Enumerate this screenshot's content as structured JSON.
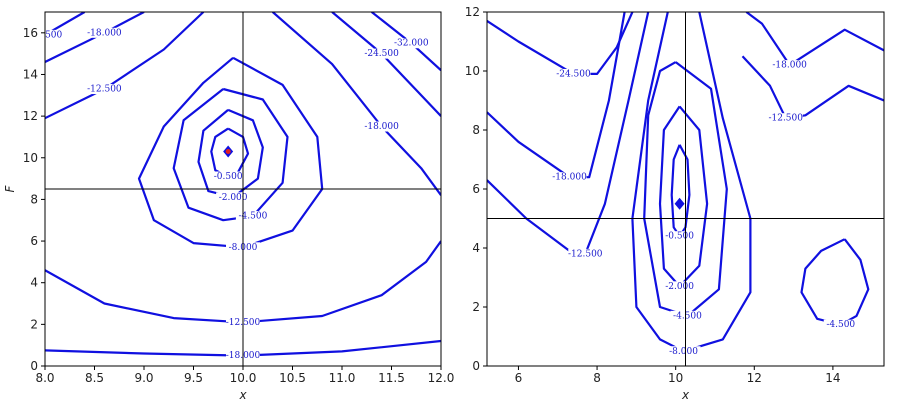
{
  "chart_data": [
    {
      "type": "contour",
      "xlabel": "x",
      "ylabel": "F",
      "xlim": [
        8,
        12
      ],
      "ylim": [
        0,
        17
      ],
      "xticks": [
        {
          "value": 8,
          "label": "8.0"
        },
        {
          "value": 8.5,
          "label": "8.5"
        },
        {
          "value": 9,
          "label": "9.0"
        },
        {
          "value": 9.5,
          "label": "9.5"
        },
        {
          "value": 10,
          "label": "10.0"
        },
        {
          "value": 10.5,
          "label": "10.5"
        },
        {
          "value": 11,
          "label": "11.0"
        },
        {
          "value": 11.5,
          "label": "11.5"
        },
        {
          "value": 12,
          "label": "12.0"
        }
      ],
      "yticks": [
        0,
        2,
        4,
        6,
        8,
        10,
        12,
        14,
        16
      ],
      "color": "#1010e0",
      "crosshair": {
        "x": 10,
        "y": 8.5
      },
      "optimum": {
        "x": 9.85,
        "y": 10.3
      },
      "contours": [
        {
          "level": -0.5,
          "label": "-0.500",
          "x": [
            9.85,
            10.0,
            10.05,
            9.95,
            9.85,
            9.72,
            9.68,
            9.72,
            9.85
          ],
          "y": [
            11.4,
            11.0,
            10.2,
            9.3,
            9.1,
            9.4,
            10.3,
            11.0,
            11.4
          ]
        },
        {
          "level": -2,
          "label": "-2.000",
          "x": [
            9.85,
            10.1,
            10.2,
            10.15,
            9.9,
            9.65,
            9.55,
            9.6,
            9.85
          ],
          "y": [
            12.3,
            11.8,
            10.5,
            9.0,
            8.1,
            8.4,
            9.8,
            11.3,
            12.3
          ]
        },
        {
          "level": -4.5,
          "label": "-4.500",
          "x": [
            9.8,
            10.2,
            10.45,
            10.4,
            10.1,
            9.8,
            9.45,
            9.3,
            9.4,
            9.8
          ],
          "y": [
            13.3,
            12.8,
            11.0,
            8.8,
            7.2,
            7.0,
            7.6,
            9.5,
            11.8,
            13.3
          ]
        },
        {
          "level": -8,
          "label": "-8.000",
          "x": [
            9.9,
            10.4,
            10.75,
            10.8,
            10.5,
            10.0,
            9.5,
            9.1,
            8.95,
            9.2,
            9.6,
            9.9
          ],
          "y": [
            14.8,
            13.5,
            11.0,
            8.5,
            6.5,
            5.7,
            5.9,
            7.0,
            9.0,
            11.5,
            13.6,
            14.8
          ]
        },
        {
          "level": -12.5,
          "label": "-12.500",
          "x": [
            8.0,
            8.6,
            9.3,
            10.0,
            10.8,
            11.4,
            11.85,
            12.0
          ],
          "y": [
            4.6,
            3.0,
            2.3,
            2.1,
            2.4,
            3.4,
            5.0,
            6.0
          ]
        },
        {
          "level": -12.5,
          "label": "-12.500",
          "x": [
            8.0,
            8.6,
            9.2,
            9.6
          ],
          "y": [
            11.9,
            13.3,
            15.2,
            17.0
          ]
        },
        {
          "level": -18,
          "label": "-18.000",
          "x": [
            8.0,
            9.0,
            10.0,
            11.0,
            12.0
          ],
          "y": [
            0.75,
            0.6,
            0.5,
            0.7,
            1.2
          ]
        },
        {
          "level": -18,
          "label": "-18.000",
          "x": [
            8.0,
            8.6,
            9.0
          ],
          "y": [
            14.6,
            16.0,
            17.0
          ]
        },
        {
          "level": -18,
          "label": "-18.000",
          "x": [
            10.3,
            10.9,
            11.4,
            11.8,
            12.0
          ],
          "y": [
            17.0,
            14.5,
            11.5,
            9.5,
            8.2
          ]
        },
        {
          "level": -24.5,
          "label": "-24.500",
          "x": [
            8.0,
            8.4
          ],
          "y": [
            15.9,
            17.0
          ]
        },
        {
          "level": -24.5,
          "label": "-24.500",
          "x": [
            10.9,
            11.4,
            11.8,
            12.0
          ],
          "y": [
            17.0,
            15.0,
            13.0,
            12.0
          ]
        },
        {
          "level": -32,
          "label": "-32.000",
          "x": [
            11.3,
            11.7,
            12.0
          ],
          "y": [
            17.0,
            15.5,
            14.2
          ]
        }
      ]
    },
    {
      "type": "contour",
      "xlabel": "x",
      "xlim": [
        5.2,
        15.3
      ],
      "ylim": [
        0,
        12
      ],
      "xticks": [
        6,
        8,
        10,
        12,
        14
      ],
      "yticks": [
        0,
        2,
        4,
        6,
        8,
        10,
        12
      ],
      "color": "#1010e0",
      "crosshair": {
        "x": 10.25,
        "y": 5
      },
      "optimum": {
        "x": 10.1,
        "y": 5.5
      },
      "contours": [
        {
          "level": -0.5,
          "label": "-0.500",
          "x": [
            10.1,
            10.3,
            10.35,
            10.25,
            10.1,
            9.95,
            9.9,
            9.95,
            10.1
          ],
          "y": [
            7.5,
            7.0,
            5.8,
            4.7,
            4.4,
            4.7,
            5.8,
            7.0,
            7.5
          ]
        },
        {
          "level": -2,
          "label": "-2.000",
          "x": [
            10.1,
            10.6,
            10.8,
            10.6,
            10.1,
            9.7,
            9.6,
            9.7,
            10.1
          ],
          "y": [
            8.8,
            8.0,
            5.5,
            3.4,
            2.7,
            3.3,
            5.5,
            8.0,
            8.8
          ]
        },
        {
          "level": -4.5,
          "label": "-4.500",
          "x": [
            10.0,
            10.9,
            11.3,
            11.1,
            10.3,
            9.6,
            9.2,
            9.3,
            9.6,
            10.0
          ],
          "y": [
            10.3,
            9.4,
            6.0,
            2.6,
            1.7,
            2.0,
            5.0,
            8.5,
            10.0,
            10.3
          ]
        },
        {
          "level": -4.5,
          "label": "-4.500",
          "x": [
            14.3,
            14.7,
            14.9,
            14.6,
            14.2,
            13.6,
            13.2,
            13.3,
            13.7,
            14.3
          ],
          "y": [
            4.3,
            3.6,
            2.6,
            1.7,
            1.4,
            1.6,
            2.5,
            3.3,
            3.9,
            4.3
          ]
        },
        {
          "level": -8,
          "label": "-8.000",
          "x": [
            9.8,
            9.3,
            8.9,
            9.0,
            9.6,
            10.2,
            11.2,
            11.9,
            11.9,
            11.2,
            10.6
          ],
          "y": [
            12.0,
            9.0,
            5.0,
            2.0,
            0.9,
            0.5,
            0.9,
            2.5,
            5.0,
            8.4,
            12.0
          ]
        },
        {
          "level": -12.5,
          "label": "-12.500",
          "x": [
            5.2,
            6.2,
            7.3,
            7.7,
            8.2,
            8.8,
            9.3
          ],
          "y": [
            6.3,
            5.0,
            3.9,
            3.8,
            5.5,
            9.0,
            12.0
          ]
        },
        {
          "level": -18,
          "label": "-18.000",
          "x": [
            5.2,
            6.0,
            7.3,
            7.8,
            8.3,
            8.7
          ],
          "y": [
            8.6,
            7.6,
            6.4,
            6.4,
            9.0,
            12.0
          ]
        },
        {
          "level": -24.5,
          "label": "-24.500",
          "x": [
            5.2,
            6.0,
            7.4,
            8.0,
            8.5,
            8.9
          ],
          "y": [
            11.7,
            11.0,
            9.9,
            9.9,
            10.8,
            12.0
          ]
        },
        {
          "level": -12.5,
          "label": "-12.500",
          "x": [
            11.7,
            12.4,
            12.8,
            13.3,
            14.4,
            15.3
          ],
          "y": [
            10.5,
            9.5,
            8.4,
            8.5,
            9.5,
            9.0
          ]
        },
        {
          "level": -18,
          "label": "-18.000",
          "x": [
            11.8,
            12.2,
            12.9,
            14.3,
            15.3
          ],
          "y": [
            12.0,
            11.6,
            10.2,
            11.4,
            10.7
          ]
        }
      ]
    }
  ]
}
